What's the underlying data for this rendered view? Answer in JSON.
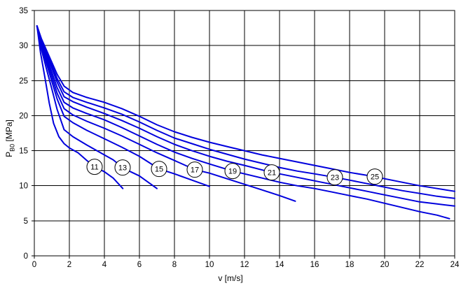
{
  "chart_data": {
    "type": "line",
    "title": "",
    "xlabel": "v [m/s]",
    "ylabel": {
      "base": "P",
      "sub": "B0",
      "unit": " [MPa]"
    },
    "xlim": [
      0,
      24
    ],
    "ylim": [
      0,
      35
    ],
    "x_ticks": [
      0,
      2,
      4,
      6,
      8,
      10,
      12,
      14,
      16,
      18,
      20,
      22,
      24
    ],
    "y_ticks": [
      0,
      5,
      10,
      15,
      20,
      25,
      30,
      35
    ],
    "grid": true,
    "grid_color": "#000000",
    "curve_color": "#0000dd",
    "legend_position": "labels-on-curves",
    "series": [
      {
        "name": "11",
        "label_at": [
          3.44,
          12.7
        ],
        "points": [
          [
            0.15,
            32.8
          ],
          [
            0.35,
            29.0
          ],
          [
            0.6,
            25.5
          ],
          [
            0.85,
            21.8
          ],
          [
            1.1,
            18.9
          ],
          [
            1.4,
            17.0
          ],
          [
            1.7,
            16.0
          ],
          [
            2.0,
            15.4
          ],
          [
            2.5,
            14.7
          ],
          [
            3.0,
            13.6
          ],
          [
            3.44,
            12.7
          ],
          [
            4.0,
            12.0
          ],
          [
            4.5,
            11.1
          ],
          [
            5.05,
            9.6
          ]
        ]
      },
      {
        "name": "13",
        "label_at": [
          5.04,
          12.6
        ],
        "points": [
          [
            0.15,
            32.8
          ],
          [
            0.4,
            29.5
          ],
          [
            0.7,
            26.6
          ],
          [
            1.0,
            23.8
          ],
          [
            1.3,
            20.9
          ],
          [
            1.7,
            18.0
          ],
          [
            2.2,
            17.0
          ],
          [
            3.0,
            15.8
          ],
          [
            4.0,
            14.4
          ],
          [
            4.5,
            13.7
          ],
          [
            5.04,
            12.6
          ],
          [
            5.5,
            12.0
          ],
          [
            6.0,
            11.4
          ],
          [
            6.5,
            10.5
          ],
          [
            7.0,
            9.6
          ]
        ]
      },
      {
        "name": "15",
        "label_at": [
          7.12,
          12.4
        ],
        "points": [
          [
            0.15,
            32.8
          ],
          [
            0.4,
            29.9
          ],
          [
            0.7,
            27.4
          ],
          [
            1.0,
            24.9
          ],
          [
            1.3,
            22.4
          ],
          [
            1.7,
            19.9
          ],
          [
            2.2,
            19.0
          ],
          [
            3.0,
            17.9
          ],
          [
            4.0,
            16.7
          ],
          [
            5.0,
            15.5
          ],
          [
            6.0,
            14.2
          ],
          [
            7.12,
            12.4
          ],
          [
            8.0,
            11.7
          ],
          [
            9.0,
            10.8
          ],
          [
            10.0,
            9.9
          ]
        ]
      },
      {
        "name": "17",
        "label_at": [
          9.16,
          12.3
        ],
        "points": [
          [
            0.15,
            32.8
          ],
          [
            0.4,
            30.2
          ],
          [
            0.7,
            27.9
          ],
          [
            1.0,
            25.6
          ],
          [
            1.3,
            23.2
          ],
          [
            1.7,
            21.0
          ],
          [
            2.2,
            20.1
          ],
          [
            3.0,
            19.2
          ],
          [
            4.0,
            18.2
          ],
          [
            5.0,
            17.1
          ],
          [
            6.0,
            15.9
          ],
          [
            7.0,
            14.7
          ],
          [
            8.0,
            13.6
          ],
          [
            9.16,
            12.3
          ],
          [
            10.0,
            11.8
          ],
          [
            11.0,
            11.0
          ],
          [
            12.0,
            10.2
          ],
          [
            13.0,
            9.4
          ],
          [
            14.0,
            8.6
          ],
          [
            14.9,
            7.8
          ]
        ]
      },
      {
        "name": "19",
        "label_at": [
          11.32,
          12.1
        ],
        "points": [
          [
            0.15,
            32.8
          ],
          [
            0.4,
            30.4
          ],
          [
            0.7,
            28.3
          ],
          [
            1.0,
            26.2
          ],
          [
            1.3,
            24.0
          ],
          [
            1.7,
            21.9
          ],
          [
            2.2,
            21.1
          ],
          [
            3.0,
            20.3
          ],
          [
            4.0,
            19.4
          ],
          [
            5.0,
            18.3
          ],
          [
            6.0,
            17.1
          ],
          [
            7.0,
            15.9
          ],
          [
            8.0,
            14.8
          ],
          [
            9.0,
            13.9
          ],
          [
            10.0,
            13.1
          ],
          [
            11.32,
            12.1
          ],
          [
            12.0,
            11.7
          ],
          [
            13.0,
            11.1
          ],
          [
            14.0,
            10.5
          ],
          [
            15.0,
            10.0
          ],
          [
            16.0,
            9.6
          ],
          [
            17.0,
            9.1
          ],
          [
            18.0,
            8.6
          ],
          [
            19.0,
            8.1
          ],
          [
            20.0,
            7.5
          ],
          [
            21.0,
            6.9
          ],
          [
            22.0,
            6.3
          ],
          [
            23.0,
            5.8
          ],
          [
            23.7,
            5.3
          ]
        ]
      },
      {
        "name": "21",
        "label_at": [
          13.56,
          11.9
        ],
        "points": [
          [
            0.15,
            32.8
          ],
          [
            0.4,
            30.6
          ],
          [
            0.7,
            28.7
          ],
          [
            1.0,
            26.8
          ],
          [
            1.3,
            24.8
          ],
          [
            1.7,
            22.7
          ],
          [
            2.2,
            22.0
          ],
          [
            3.0,
            21.2
          ],
          [
            4.0,
            20.3
          ],
          [
            5.0,
            19.3
          ],
          [
            6.0,
            18.2
          ],
          [
            7.0,
            17.0
          ],
          [
            8.0,
            15.9
          ],
          [
            9.0,
            15.0
          ],
          [
            10.0,
            14.2
          ],
          [
            11.0,
            13.5
          ],
          [
            12.0,
            12.9
          ],
          [
            13.56,
            11.9
          ],
          [
            14.0,
            11.7
          ],
          [
            15.0,
            11.2
          ],
          [
            16.0,
            10.7
          ],
          [
            17.0,
            10.2
          ],
          [
            18.0,
            9.7
          ],
          [
            19.0,
            9.2
          ],
          [
            20.0,
            8.7
          ],
          [
            21.0,
            8.2
          ],
          [
            22.0,
            7.7
          ],
          [
            23.0,
            7.4
          ],
          [
            24.0,
            7.1
          ]
        ]
      },
      {
        "name": "23",
        "label_at": [
          17.16,
          11.2
        ],
        "points": [
          [
            0.15,
            32.8
          ],
          [
            0.4,
            30.8
          ],
          [
            0.7,
            29.0
          ],
          [
            1.0,
            27.2
          ],
          [
            1.3,
            25.3
          ],
          [
            1.7,
            23.4
          ],
          [
            2.2,
            22.6
          ],
          [
            3.0,
            21.9
          ],
          [
            4.0,
            21.1
          ],
          [
            5.0,
            20.2
          ],
          [
            6.0,
            19.1
          ],
          [
            7.0,
            17.9
          ],
          [
            8.0,
            16.8
          ],
          [
            9.0,
            16.0
          ],
          [
            10.0,
            15.2
          ],
          [
            11.0,
            14.5
          ],
          [
            12.0,
            13.8
          ],
          [
            13.0,
            13.2
          ],
          [
            14.0,
            12.6
          ],
          [
            15.0,
            12.1
          ],
          [
            16.0,
            11.7
          ],
          [
            17.16,
            11.2
          ],
          [
            18.0,
            10.8
          ],
          [
            19.0,
            10.3
          ],
          [
            20.0,
            9.8
          ],
          [
            21.0,
            9.3
          ],
          [
            22.0,
            8.9
          ],
          [
            23.0,
            8.5
          ],
          [
            24.0,
            8.2
          ]
        ]
      },
      {
        "name": "25",
        "label_at": [
          19.44,
          11.3
        ],
        "points": [
          [
            0.15,
            32.8
          ],
          [
            0.4,
            31.0
          ],
          [
            0.7,
            29.3
          ],
          [
            1.0,
            27.6
          ],
          [
            1.3,
            25.9
          ],
          [
            1.7,
            24.2
          ],
          [
            2.2,
            23.3
          ],
          [
            3.0,
            22.6
          ],
          [
            4.0,
            21.9
          ],
          [
            5.0,
            21.0
          ],
          [
            6.0,
            19.9
          ],
          [
            7.0,
            18.7
          ],
          [
            8.0,
            17.7
          ],
          [
            9.0,
            16.9
          ],
          [
            10.0,
            16.2
          ],
          [
            11.0,
            15.6
          ],
          [
            12.0,
            15.0
          ],
          [
            13.0,
            14.4
          ],
          [
            14.0,
            13.9
          ],
          [
            15.0,
            13.4
          ],
          [
            16.0,
            12.9
          ],
          [
            17.0,
            12.4
          ],
          [
            18.0,
            11.9
          ],
          [
            19.44,
            11.3
          ],
          [
            20.0,
            11.0
          ],
          [
            21.0,
            10.5
          ],
          [
            22.0,
            10.0
          ],
          [
            23.0,
            9.6
          ],
          [
            24.0,
            9.2
          ]
        ]
      }
    ]
  }
}
